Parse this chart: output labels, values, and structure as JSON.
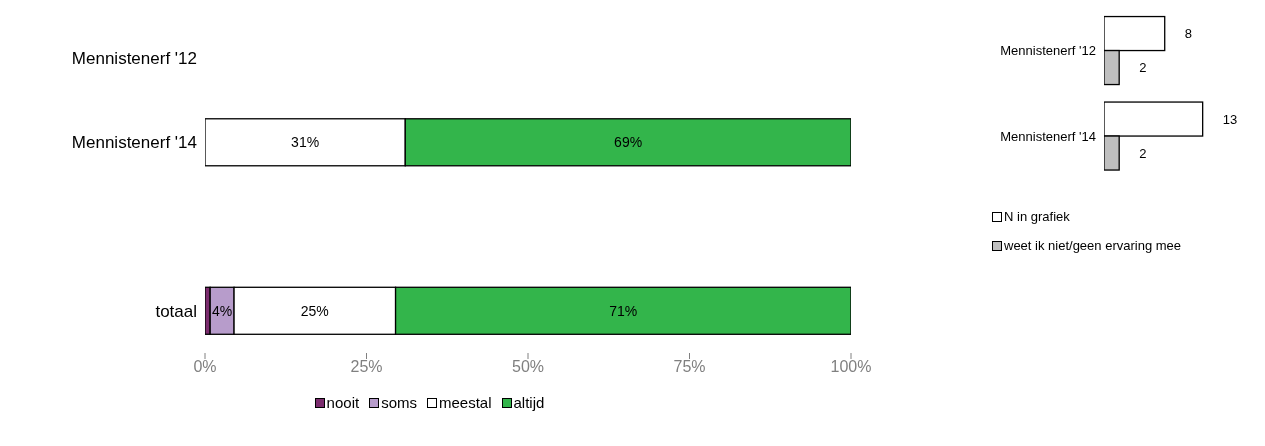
{
  "chart_data": [
    {
      "type": "bar",
      "orientation": "horizontal",
      "stacked": true,
      "categories": [
        "Mennistenerf '12",
        "Mennistenerf '14",
        null,
        "totaal"
      ],
      "xlim": [
        0,
        100
      ],
      "xticks": [
        {
          "value": 0,
          "label": "0%"
        },
        {
          "value": 25,
          "label": "25%"
        },
        {
          "value": 50,
          "label": "50%"
        },
        {
          "value": 75,
          "label": "75%"
        },
        {
          "value": 100,
          "label": "100%"
        }
      ],
      "legend": "bottom",
      "series": [
        {
          "name": "nooit",
          "color": "#7b2c6e",
          "values": [
            null,
            null,
            null,
            0.8
          ]
        },
        {
          "name": "soms",
          "color": "#b79ccb",
          "values": [
            null,
            null,
            null,
            3.7
          ],
          "value_labels": [
            null,
            null,
            null,
            "4%"
          ]
        },
        {
          "name": "meestal",
          "color": "#ffffff",
          "values": [
            null,
            31,
            null,
            25
          ],
          "value_labels": [
            null,
            "31%",
            null,
            "25%"
          ]
        },
        {
          "name": "altijd",
          "color": "#33b54b",
          "values": [
            null,
            69,
            null,
            70.5
          ],
          "value_labels": [
            null,
            "69%",
            null,
            "71%"
          ]
        }
      ]
    },
    {
      "type": "bar",
      "orientation": "horizontal",
      "categories": [
        "Mennistenerf '12",
        "Mennistenerf '14"
      ],
      "tick_labels": "y",
      "data_labels": true,
      "legend": "bottom",
      "series": [
        {
          "name": "N in grafiek",
          "color": "#ffffff",
          "values": [
            8,
            13
          ]
        },
        {
          "name": "weet ik niet/geen ervaring mee",
          "color": "#bfbfbf",
          "values": [
            2,
            2
          ]
        }
      ]
    }
  ]
}
